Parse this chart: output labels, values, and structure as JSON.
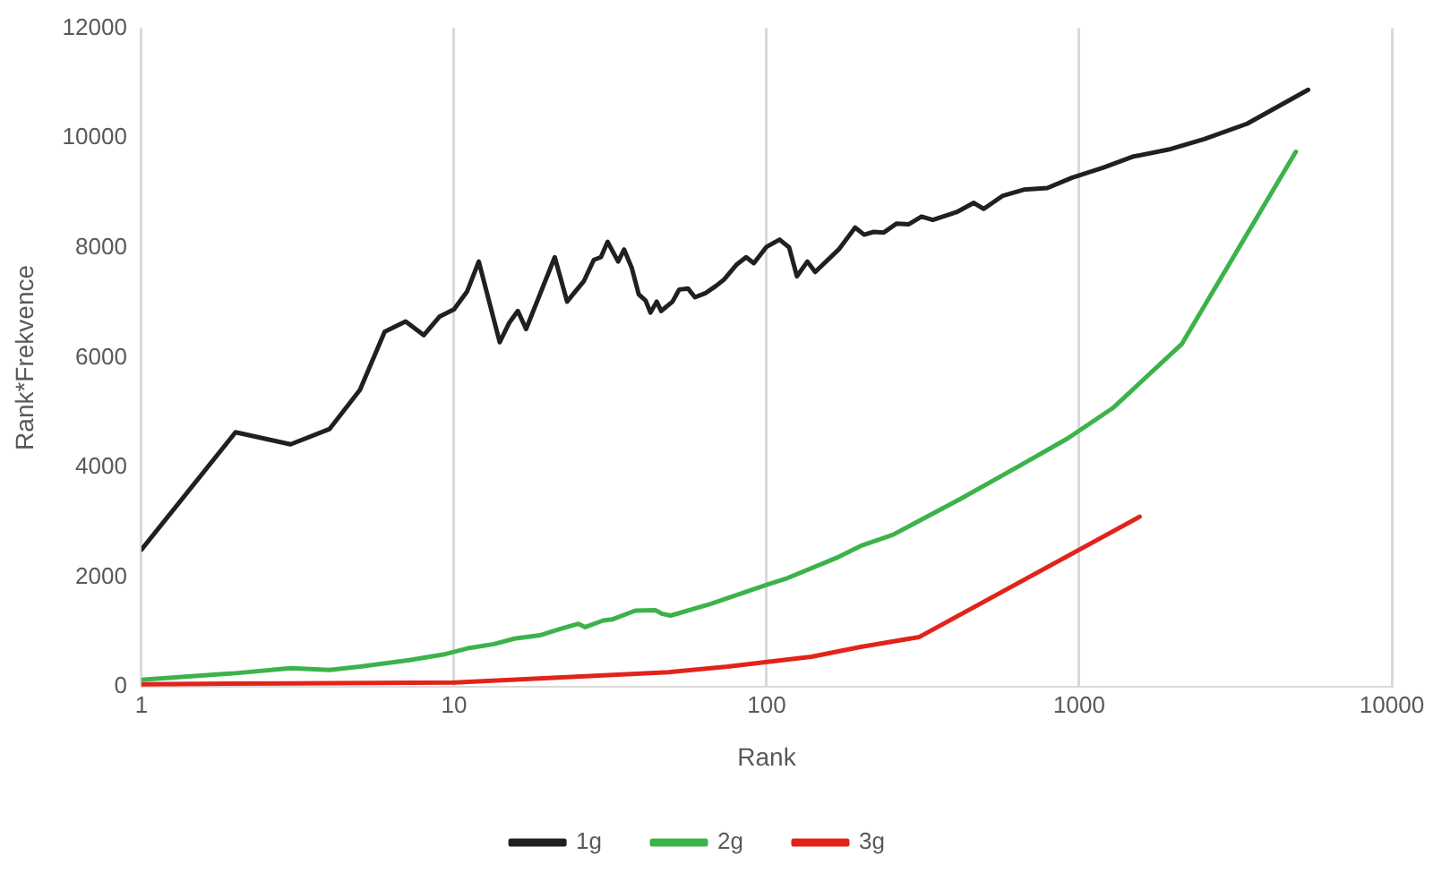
{
  "chart_data": {
    "type": "line",
    "xlabel": "Rank",
    "ylabel": "Rank*Frekvence",
    "log": "x",
    "grid": "x",
    "legend": "bottom",
    "marker": "none",
    "line_style": "solid",
    "xlim": [
      1,
      10000
    ],
    "xticks": [
      1,
      10,
      100,
      1000,
      10000
    ],
    "ylim": [
      0,
      12000
    ],
    "yticks": [
      0,
      2000,
      4000,
      6000,
      8000,
      10000,
      12000
    ],
    "series": [
      {
        "name": "1g",
        "color": "#231f20",
        "x": [
          1,
          2,
          3,
          4,
          5,
          6,
          7,
          8,
          9,
          10,
          11,
          12,
          14,
          15,
          16,
          17,
          21,
          23,
          24,
          26,
          28,
          29.5,
          31,
          33.5,
          35,
          37,
          39,
          41,
          42.5,
          44.5,
          46,
          50,
          52.5,
          56,
          59,
          64,
          69,
          73,
          80,
          86,
          91,
          100,
          110,
          118,
          125,
          135,
          143,
          170,
          192,
          205,
          220,
          237,
          260,
          285,
          313,
          340,
          405,
          460,
          495,
          570,
          665,
          790,
          950,
          1190,
          1480,
          1930,
          2510,
          3440,
          5400
        ],
        "values": [
          2500,
          4640,
          4420,
          4700,
          5410,
          6470,
          6660,
          6410,
          6750,
          6880,
          7200,
          7750,
          6280,
          6630,
          6850,
          6520,
          7830,
          7020,
          7150,
          7390,
          7780,
          7830,
          8110,
          7750,
          7970,
          7640,
          7150,
          7040,
          6820,
          7020,
          6850,
          7020,
          7240,
          7260,
          7100,
          7180,
          7310,
          7420,
          7690,
          7830,
          7720,
          8020,
          8150,
          8010,
          7480,
          7750,
          7560,
          7970,
          8370,
          8240,
          8290,
          8280,
          8440,
          8430,
          8570,
          8510,
          8650,
          8820,
          8710,
          8950,
          9060,
          9090,
          9280,
          9460,
          9660,
          9790,
          9980,
          10260,
          10880
        ]
      },
      {
        "name": "2g",
        "color": "#3cb34a",
        "x": [
          1,
          2,
          3,
          4,
          5,
          7.2,
          9.4,
          11.2,
          13.4,
          15.6,
          18.8,
          22,
          25,
          26.3,
          30,
          32,
          38,
          44,
          46.4,
          49.3,
          66,
          101,
          115,
          167,
          200,
          253,
          418,
          645,
          920,
          1280,
          2130,
          4930
        ],
        "values": [
          130,
          250,
          340,
          310,
          370,
          490,
          600,
          710,
          780,
          880,
          940,
          1060,
          1150,
          1090,
          1210,
          1230,
          1390,
          1400,
          1330,
          1300,
          1510,
          1870,
          1970,
          2350,
          2570,
          2770,
          3430,
          4030,
          4530,
          5080,
          6250,
          9750
        ]
      },
      {
        "name": "3g",
        "color": "#e2231a",
        "x": [
          1,
          3,
          10,
          19.4,
          48.6,
          75,
          102,
          139,
          200,
          308,
          1560
        ],
        "values": [
          50,
          65,
          80,
          160,
          270,
          370,
          460,
          550,
          730,
          910,
          3100
        ]
      }
    ]
  }
}
